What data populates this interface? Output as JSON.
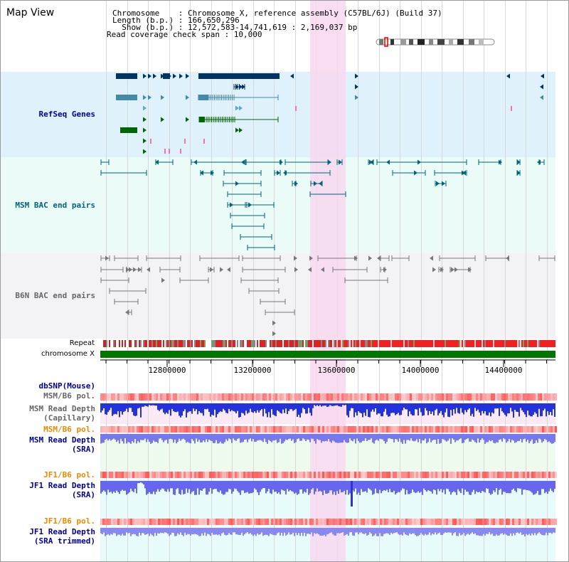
{
  "map_view": {
    "title": "Map View",
    "chromosome_line": "Chromosome    : Chromosome X, reference assembly (C57BL/6J) (Build 37)",
    "length_line": "Length (b.p.) : 166,650,296",
    "show_line": "  Show (b.p.) : 12,572,583-14,741,619 : 2,169,037 bp",
    "coverage_line": "Read coverage check span : 10,000"
  },
  "tracks": {
    "refseq": "RefSeq Genes",
    "msm_bac": "MSM BAC end pairs",
    "b6n_bac": "B6N BAC end pairs",
    "repeat": "Repeat",
    "chromosome": "chromosome X",
    "dbsnp": "dbSNP(Mouse)",
    "msm_pol_1": "MSM/B6 pol.",
    "msm_depth_cap_1": "MSM Read Depth",
    "msm_depth_cap_2": "(Capillary)",
    "msm_pol_2": "MSM/B6 pol.",
    "msm_depth_sra_1": "MSM Read Depth",
    "msm_depth_sra_2": "(SRA)",
    "jf1_pol_1": "JF1/B6 pol.",
    "jf1_depth_sra_1": "JF1 Read Depth",
    "jf1_depth_sra_2": "(SRA)",
    "jf1_pol_2": "JF1/B6 pol.",
    "jf1_depth_trim_1": "JF1 Read Depth",
    "jf1_depth_trim_2": "(SRA trimmed)"
  },
  "axis": {
    "ticks": [
      "12800000",
      "13200000",
      "13600000",
      "14000000",
      "14400000"
    ]
  },
  "colors": {
    "refseq_band": "#dff2fb",
    "msm_band": "#eafbf8",
    "b6n_band": "#f3f3f6",
    "highlight": "#f8d8f0",
    "msm_label": "#006677",
    "refseq_label": "#000099",
    "orange_label": "#ee8800",
    "chromosome_bar": "#007700",
    "depth_dark": "#2222dd",
    "depth_light": "#7777ee"
  }
}
